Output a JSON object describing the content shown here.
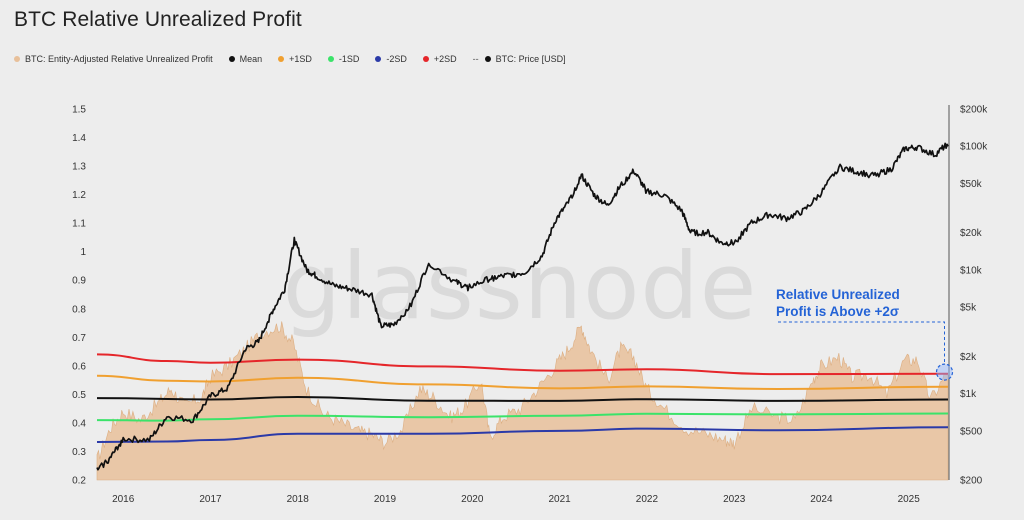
{
  "chart_data": {
    "type": "area",
    "title": "BTC Relative Unrealized Profit",
    "x_ticks": [
      "2016",
      "2017",
      "2018",
      "2019",
      "2020",
      "2021",
      "2022",
      "2023",
      "2024",
      "2025"
    ],
    "x_range": [
      2015.7,
      2025.45
    ],
    "y_left": {
      "ticks": [
        "1.5",
        "1.4",
        "1.3",
        "1.2",
        "1.1",
        "1",
        "0.9",
        "0.8",
        "0.7",
        "0.6",
        "0.5",
        "0.4",
        "0.3",
        "0.2"
      ],
      "range": [
        0.2,
        1.5
      ]
    },
    "y_right": {
      "scale": "log",
      "ticks": [
        "$200k",
        "$100k",
        "$50k",
        "$20k",
        "$10k",
        "$5k",
        "$2k",
        "$1k",
        "$500",
        "$200"
      ],
      "tick_values": [
        200000,
        100000,
        50000,
        20000,
        10000,
        5000,
        2000,
        1000,
        500,
        200
      ],
      "range": [
        200,
        200000
      ]
    },
    "legend": [
      {
        "label": "BTC: Entity-Adjusted Relative Unrealized Profit",
        "color": "#e8c09a"
      },
      {
        "label": "Mean",
        "color": "#111111"
      },
      {
        "label": "+1SD",
        "color": "#f0a030"
      },
      {
        "label": "-1SD",
        "color": "#3be36a"
      },
      {
        "label": "-2SD",
        "color": "#2b3aa8"
      },
      {
        "label": "+2SD",
        "color": "#e5262a"
      },
      {
        "label": "BTC: Price [USD]",
        "color": "#111111",
        "prefix": "--"
      }
    ],
    "series": [
      {
        "name": "BTC: Entity-Adjusted Relative Unrealized Profit",
        "axis": "left",
        "color": "#e8c09a",
        "x": [
          2015.7,
          2015.85,
          2016.0,
          2016.2,
          2016.4,
          2016.55,
          2016.7,
          2016.9,
          2017.0,
          2017.2,
          2017.4,
          2017.6,
          2017.8,
          2017.95,
          2018.1,
          2018.3,
          2018.5,
          2018.7,
          2018.85,
          2019.0,
          2019.2,
          2019.4,
          2019.55,
          2019.75,
          2019.9,
          2020.1,
          2020.2,
          2020.35,
          2020.55,
          2020.75,
          2020.95,
          2021.1,
          2021.25,
          2021.35,
          2021.55,
          2021.7,
          2021.85,
          2022.0,
          2022.2,
          2022.45,
          2022.7,
          2022.9,
          2023.0,
          2023.2,
          2023.5,
          2023.7,
          2023.9,
          2024.0,
          2024.2,
          2024.35,
          2024.55,
          2024.75,
          2024.95,
          2025.1,
          2025.25,
          2025.45
        ],
        "values": [
          0.27,
          0.38,
          0.44,
          0.41,
          0.47,
          0.52,
          0.46,
          0.49,
          0.56,
          0.6,
          0.66,
          0.72,
          0.74,
          0.68,
          0.52,
          0.43,
          0.4,
          0.37,
          0.36,
          0.33,
          0.38,
          0.52,
          0.49,
          0.42,
          0.45,
          0.55,
          0.35,
          0.42,
          0.45,
          0.52,
          0.6,
          0.66,
          0.74,
          0.66,
          0.55,
          0.66,
          0.63,
          0.52,
          0.45,
          0.38,
          0.36,
          0.34,
          0.33,
          0.45,
          0.42,
          0.41,
          0.55,
          0.6,
          0.63,
          0.56,
          0.57,
          0.5,
          0.62,
          0.62,
          0.48,
          0.58
        ]
      },
      {
        "name": "Mean",
        "axis": "left",
        "color": "#111111",
        "x": [
          2015.7,
          2017.0,
          2018.0,
          2019.5,
          2021.0,
          2022.0,
          2023.5,
          2025.45
        ],
        "values": [
          0.487,
          0.482,
          0.491,
          0.478,
          0.477,
          0.483,
          0.477,
          0.482
        ]
      },
      {
        "name": "+1SD",
        "axis": "left",
        "color": "#f0a030",
        "x": [
          2015.7,
          2016.5,
          2017.0,
          2018.0,
          2019.5,
          2021.0,
          2022.0,
          2023.5,
          2025.45
        ],
        "values": [
          0.565,
          0.548,
          0.545,
          0.558,
          0.535,
          0.521,
          0.528,
          0.519,
          0.527
        ]
      },
      {
        "name": "+2SD",
        "axis": "left",
        "color": "#e5262a",
        "x": [
          2015.7,
          2016.5,
          2017.0,
          2018.0,
          2019.5,
          2021.0,
          2022.0,
          2023.5,
          2025.45
        ],
        "values": [
          0.64,
          0.617,
          0.611,
          0.622,
          0.598,
          0.583,
          0.588,
          0.571,
          0.572
        ]
      },
      {
        "name": "-1SD",
        "axis": "left",
        "color": "#3be36a",
        "x": [
          2015.7,
          2016.5,
          2017.0,
          2018.0,
          2019.5,
          2021.0,
          2022.0,
          2023.5,
          2025.45
        ],
        "values": [
          0.41,
          0.408,
          0.413,
          0.425,
          0.42,
          0.425,
          0.432,
          0.43,
          0.433
        ]
      },
      {
        "name": "-2SD",
        "axis": "left",
        "color": "#2b3aa8",
        "x": [
          2015.7,
          2016.5,
          2017.0,
          2018.0,
          2019.5,
          2021.0,
          2022.0,
          2023.5,
          2025.45
        ],
        "values": [
          0.333,
          0.335,
          0.34,
          0.362,
          0.362,
          0.372,
          0.38,
          0.374,
          0.385
        ]
      },
      {
        "name": "BTC: Price [USD]",
        "axis": "right",
        "color": "#111111",
        "x": [
          2015.7,
          2015.85,
          2016.0,
          2016.3,
          2016.5,
          2016.8,
          2017.0,
          2017.2,
          2017.4,
          2017.55,
          2017.7,
          2017.85,
          2017.96,
          2018.1,
          2018.2,
          2018.4,
          2018.6,
          2018.85,
          2018.95,
          2019.1,
          2019.3,
          2019.5,
          2019.8,
          2019.95,
          2020.2,
          2020.4,
          2020.6,
          2020.8,
          2020.95,
          2021.1,
          2021.25,
          2021.4,
          2021.55,
          2021.7,
          2021.85,
          2022.0,
          2022.2,
          2022.4,
          2022.5,
          2022.7,
          2022.85,
          2023.0,
          2023.2,
          2023.4,
          2023.6,
          2023.8,
          2024.0,
          2024.2,
          2024.4,
          2024.6,
          2024.8,
          2024.95,
          2025.1,
          2025.3,
          2025.45
        ],
        "values": [
          240,
          300,
          430,
          420,
          650,
          610,
          950,
          1100,
          2300,
          2600,
          4500,
          7000,
          17500,
          10000,
          9000,
          7500,
          7000,
          6300,
          3500,
          3600,
          5200,
          11500,
          8000,
          7200,
          8500,
          9000,
          9500,
          13000,
          25000,
          35000,
          58000,
          40000,
          33000,
          48000,
          63000,
          43000,
          40000,
          30000,
          20000,
          20000,
          16500,
          16500,
          24000,
          28000,
          26000,
          30000,
          42000,
          68000,
          62000,
          58000,
          65000,
          95000,
          98000,
          85000,
          105000
        ]
      }
    ]
  },
  "annotation": {
    "line1": "Relative Unrealized",
    "line2": "Profit is Above +2σ"
  },
  "watermark": "glassnode"
}
